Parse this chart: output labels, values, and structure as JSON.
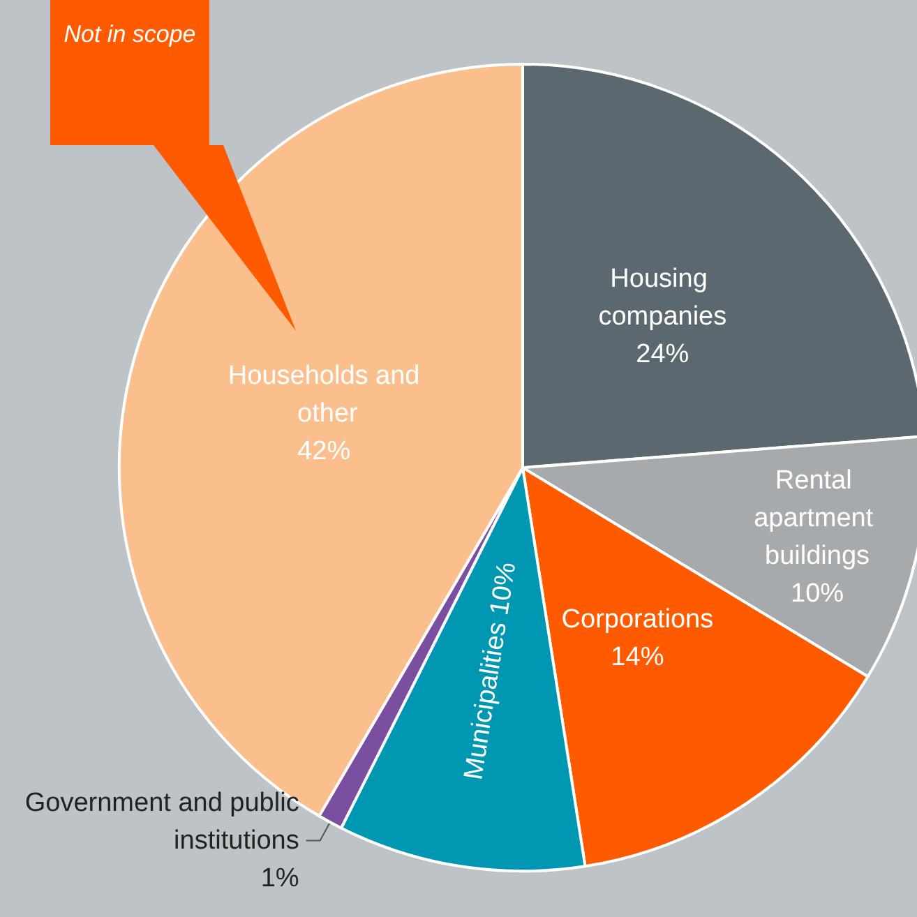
{
  "chart_data": {
    "type": "pie",
    "categories": [
      "Housing companies",
      "Rental apartment buildings",
      "Corporations",
      "Municipalities",
      "Government and public institutions",
      "Households and other"
    ],
    "values": [
      24,
      10,
      14,
      10,
      1,
      42
    ],
    "colors": [
      "#5c6870",
      "#a6aaac",
      "#ff5a00",
      "#0097b2",
      "#7b4fa0",
      "#fbbf8e"
    ],
    "annotations": [
      "Not in scope"
    ],
    "value_labels": [
      "24%",
      "10%",
      "14%",
      "10%",
      "1%",
      "42%"
    ],
    "legend": false
  }
}
